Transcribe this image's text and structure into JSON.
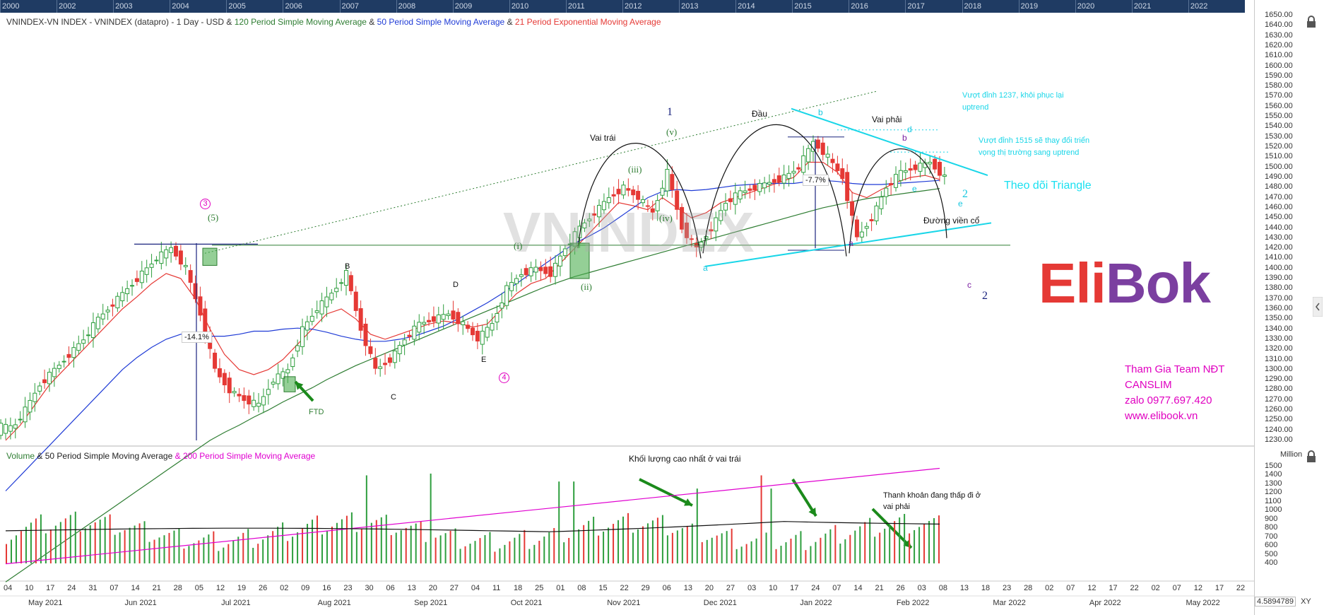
{
  "header": {
    "legend_main": "VNINDEX-VN INDEX - VNINDEX (datapro) - 1 Day - USD",
    "legend_sma120": "120 Period Simple Moving Average",
    "legend_sma50": "50 Period Simple Moving Average",
    "legend_ema21": "21 Period Exponential Moving Average",
    "legend_amp": "&"
  },
  "volume_legend": {
    "volume": "Volume",
    "sma50": "& 50 Period Simple Moving Average",
    "sma200": "& 200 Period Simple Moving Average"
  },
  "overview_years": [
    "2000",
    "2002",
    "2003",
    "2004",
    "2005",
    "2006",
    "2007",
    "2008",
    "2009",
    "2010",
    "2011",
    "2012",
    "2013",
    "2014",
    "2015",
    "2016",
    "2017",
    "2018",
    "2019",
    "2020",
    "2021",
    "2022"
  ],
  "annotations": {
    "vai_trai": "Vai trái",
    "dau": "Đầu",
    "vai_phai": "Vai phải",
    "duong_vien_co": "Đường viền cổ",
    "theo_doi": "Theo dõi  Triangle",
    "vuot_dinh_1237": "Vượt đỉnh 1237, khôi phục lại uptrend",
    "vuot_dinh_1515": "Vượt đỉnh 1515 sẽ thay đổi triển vọng thị trường sang uptrend",
    "pct_141": "-14.1%",
    "pct_77": "-7.7%",
    "ftd": "FTD",
    "khoi_luong": "Khối lượng cao nhất ở vai trái",
    "thanh_khoan": "Thanh khoản đang thấp đi ở vai phải",
    "wave_3": "3",
    "wave_5": "(5)",
    "wave_B": "B",
    "wave_C": "C",
    "wave_D": "D",
    "wave_E": "E",
    "wave_4": "4",
    "wave_i": "(i)",
    "wave_ii": "(ii)",
    "wave_iii": "(iii)",
    "wave_iv": "(iv)",
    "wave_v": "(v)",
    "wave_1": "1",
    "wave_a1": "a",
    "wave_a2": "a",
    "wave_b": "b",
    "wave_b2": "b",
    "wave_c": "c",
    "wave_d": "d",
    "wave_e": "e",
    "wave_e2": "e",
    "wave_2a": "2",
    "wave_2b": "2",
    "watermark": "VNINDEX"
  },
  "brand": {
    "part1": "Eli",
    "part2": "B",
    "part3": "ok",
    "color1": "#e53935",
    "color2": "#7b3fa0"
  },
  "promo": {
    "line1": "Tham Gia Team NĐT",
    "line2": "CANSLIM",
    "line3": "zalo 0977.697.420",
    "line4": "www.elibook.vn"
  },
  "volume_axis_title": "Million",
  "x_axis": {
    "days": [
      "04",
      "10",
      "17",
      "24",
      "31",
      "07",
      "14",
      "21",
      "28",
      "05",
      "12",
      "19",
      "26",
      "02",
      "09",
      "16",
      "23",
      "30",
      "06",
      "13",
      "20",
      "27",
      "04",
      "11",
      "18",
      "25",
      "01",
      "08",
      "15",
      "22",
      "29",
      "06",
      "13",
      "20",
      "27",
      "03",
      "10",
      "17",
      "24",
      "07",
      "14",
      "21",
      "26",
      "03",
      "08",
      "13",
      "18",
      "23",
      "28",
      "02",
      "07",
      "12",
      "17",
      "22",
      "02",
      "07",
      "12",
      "17",
      "22"
    ],
    "months": [
      "May 2021",
      "Jun 2021",
      "Jul 2021",
      "Aug 2021",
      "Sep 2021",
      "Oct 2021",
      "Nov 2021",
      "Dec 2021",
      "Jan 2022",
      "Feb 2022",
      "Mar 2022",
      "Apr 2022",
      "May 2022"
    ]
  },
  "zoom_readout": "4.5894789",
  "zoom_label": "XY",
  "chart_data": {
    "type": "line",
    "title": "VNINDEX-VN INDEX - VNINDEX (datapro) - 1 Day - USD",
    "price_axis": {
      "ylim": [
        1230,
        1650
      ],
      "tick_step": 10
    },
    "volume_axis": {
      "ylim": [
        400,
        1500
      ],
      "tick_step": 100,
      "unit": "Million"
    },
    "series": [
      {
        "name": "VNINDEX close (approx.)",
        "values": [
          1240,
          1260,
          1285,
          1300,
          1315,
          1330,
          1350,
          1365,
          1380,
          1395,
          1410,
          1420,
          1400,
          1355,
          1300,
          1280,
          1270,
          1265,
          1290,
          1300,
          1340,
          1360,
          1375,
          1395,
          1340,
          1300,
          1310,
          1330,
          1345,
          1350,
          1355,
          1345,
          1330,
          1345,
          1380,
          1395,
          1400,
          1395,
          1420,
          1440,
          1455,
          1470,
          1480,
          1470,
          1455,
          1495,
          1440,
          1420,
          1440,
          1465,
          1475,
          1480,
          1485,
          1490,
          1500,
          1525,
          1510,
          1490,
          1430,
          1450,
          1480,
          1495,
          1500,
          1505,
          1490
        ]
      },
      {
        "name": "21 Period Exponential Moving Average",
        "values": [
          1230,
          1245,
          1265,
          1285,
          1300,
          1315,
          1330,
          1345,
          1360,
          1372,
          1385,
          1395,
          1390,
          1370,
          1340,
          1315,
          1300,
          1295,
          1300,
          1310,
          1325,
          1340,
          1355,
          1360,
          1350,
          1335,
          1330,
          1335,
          1340,
          1345,
          1348,
          1346,
          1342,
          1345,
          1360,
          1375,
          1385,
          1390,
          1405,
          1420,
          1435,
          1450,
          1465,
          1462,
          1458,
          1470,
          1460,
          1450,
          1455,
          1465,
          1470,
          1475,
          1480,
          1485,
          1490,
          1505,
          1505,
          1495,
          1475,
          1470,
          1478,
          1485,
          1490,
          1492,
          1488
        ]
      },
      {
        "name": "50 Period Simple Moving Average",
        "values": [
          1180,
          1195,
          1210,
          1225,
          1240,
          1255,
          1270,
          1285,
          1300,
          1312,
          1322,
          1330,
          1335,
          1335,
          1333,
          1333,
          1335,
          1338,
          1338,
          1340,
          1341,
          1340,
          1337,
          1333,
          1330,
          1328,
          1328,
          1330,
          1333,
          1338,
          1343,
          1350,
          1358,
          1366,
          1375,
          1385,
          1395,
          1405,
          1415,
          1425,
          1432,
          1440,
          1450,
          1460,
          1470,
          1476,
          1478,
          1477,
          1478,
          1480,
          1482,
          1483,
          1484,
          1484,
          1484,
          1486,
          1487,
          1486,
          1484,
          1483,
          1483,
          1484,
          1485,
          1486,
          1487
        ]
      },
      {
        "name": "120 Period Simple Moving Average",
        "values": [
          1090,
          1100,
          1110,
          1120,
          1130,
          1140,
          1150,
          1160,
          1170,
          1180,
          1190,
          1200,
          1210,
          1220,
          1230,
          1238,
          1245,
          1253,
          1260,
          1268,
          1275,
          1282,
          1290,
          1297,
          1304,
          1310,
          1316,
          1322,
          1328,
          1334,
          1340,
          1346,
          1352,
          1358,
          1364,
          1370,
          1376,
          1382,
          1387,
          1392,
          1396,
          1400,
          1404,
          1408,
          1412,
          1416,
          1420,
          1424,
          1428,
          1432,
          1436,
          1440,
          1444,
          1448,
          1452,
          1456,
          1460,
          1463,
          1466,
          1469,
          1471,
          1473,
          1475,
          1477,
          1479
        ]
      }
    ],
    "levels": {
      "neckline": 1423,
      "left_high": 1424
    }
  }
}
